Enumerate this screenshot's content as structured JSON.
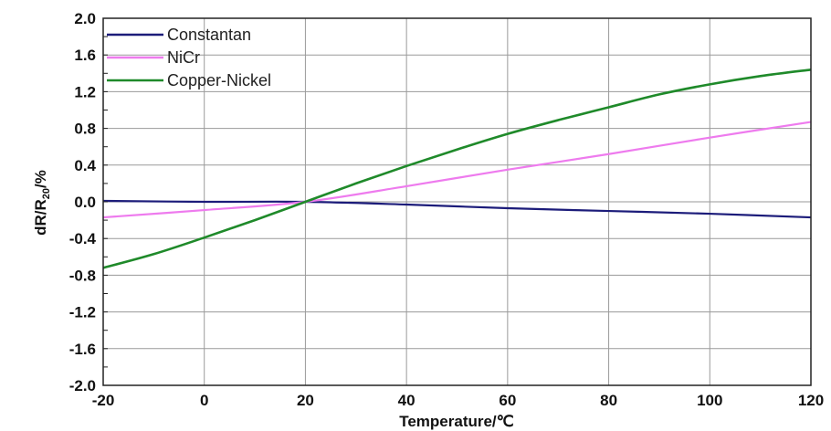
{
  "chart_data": {
    "type": "line",
    "title": "",
    "xlabel": "Temperature/℃",
    "ylabel_main": "dR/R",
    "ylabel_sub": "20",
    "ylabel_suffix": "/%",
    "xlim": [
      -20,
      120
    ],
    "ylim": [
      -2.0,
      2.0
    ],
    "x_ticks": [
      "-20",
      "0",
      "20",
      "40",
      "60",
      "80",
      "100",
      "120"
    ],
    "y_ticks": [
      "2.0",
      "1.6",
      "1.2",
      "0.8",
      "0.4",
      "0.0",
      "-0.4",
      "-0.8",
      "-1.2",
      "-1.6",
      "-2.0"
    ],
    "grid": true,
    "legend_position": "top-left",
    "series": [
      {
        "name": "Constantan",
        "color": "#1c1c7a",
        "x": [
          -20,
          0,
          20,
          40,
          60,
          80,
          100,
          120
        ],
        "y": [
          0.01,
          0.0,
          0.0,
          -0.03,
          -0.07,
          -0.1,
          -0.13,
          -0.17
        ]
      },
      {
        "name": "NiCr",
        "color": "#ee7bee",
        "x": [
          -20,
          0,
          20,
          40,
          60,
          80,
          100,
          120
        ],
        "y": [
          -0.17,
          -0.09,
          0.0,
          0.17,
          0.35,
          0.52,
          0.7,
          0.87
        ]
      },
      {
        "name": "Copper-Nickel",
        "color": "#1f8a2a",
        "x": [
          -20,
          -10,
          0,
          10,
          20,
          30,
          40,
          50,
          60,
          70,
          80,
          90,
          100,
          110,
          120
        ],
        "y": [
          -0.72,
          -0.57,
          -0.39,
          -0.2,
          0.0,
          0.2,
          0.39,
          0.57,
          0.74,
          0.89,
          1.03,
          1.17,
          1.28,
          1.37,
          1.44
        ]
      }
    ]
  }
}
